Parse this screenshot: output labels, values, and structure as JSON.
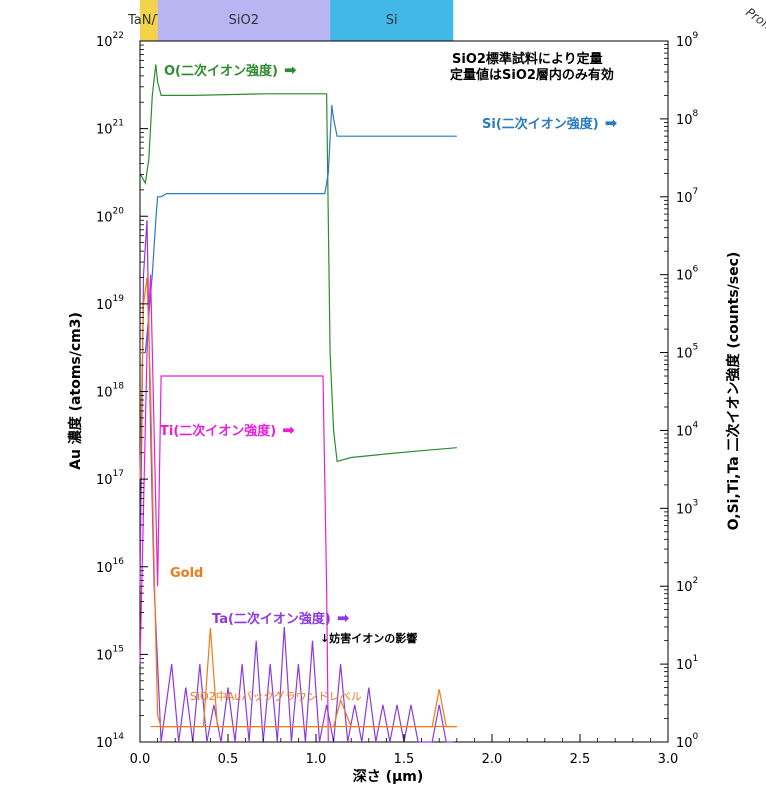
{
  "chart_data": {
    "type": "line",
    "xlabel": "深さ (μm)",
    "ylabel_left": "Au 濃度 (atoms/cm3)",
    "ylabel_right": "O,Si,Ti,Ta 二次イオン強度 (counts/sec)",
    "corner_text": "Profile",
    "xlim": [
      0,
      3.0
    ],
    "x_ticks": [
      "0.0",
      "0.5",
      "1.0",
      "1.5",
      "2.0",
      "2.5",
      "3.0"
    ],
    "x_tick_values": [
      0,
      0.5,
      1.0,
      1.5,
      2.0,
      2.5,
      3.0
    ],
    "ylim_left": [
      100000000000000.0,
      1e+22
    ],
    "ylim_right": [
      1,
      1000000000.0
    ],
    "y_left_scale": "log",
    "y_right_scale": "log",
    "y_left_ticks": [
      {
        "base": "10",
        "exp": "14"
      },
      {
        "base": "10",
        "exp": "15"
      },
      {
        "base": "10",
        "exp": "16"
      },
      {
        "base": "10",
        "exp": "17"
      },
      {
        "base": "10",
        "exp": "18"
      },
      {
        "base": "10",
        "exp": "19"
      },
      {
        "base": "10",
        "exp": "20"
      },
      {
        "base": "10",
        "exp": "21"
      },
      {
        "base": "10",
        "exp": "22"
      }
    ],
    "y_right_ticks": [
      {
        "base": "10",
        "exp": "0"
      },
      {
        "base": "10",
        "exp": "1"
      },
      {
        "base": "10",
        "exp": "2"
      },
      {
        "base": "10",
        "exp": "3"
      },
      {
        "base": "10",
        "exp": "4"
      },
      {
        "base": "10",
        "exp": "5"
      },
      {
        "base": "10",
        "exp": "6"
      },
      {
        "base": "10",
        "exp": "7"
      },
      {
        "base": "10",
        "exp": "8"
      },
      {
        "base": "10",
        "exp": "9"
      }
    ],
    "layers": [
      {
        "label": "TaN/Ta",
        "x0": 0.0,
        "x1": 0.1,
        "color": "#f2d34a"
      },
      {
        "label": "SiO2",
        "x0": 0.1,
        "x1": 1.08,
        "color": "#b9b4f2"
      },
      {
        "label": "Si",
        "x0": 1.08,
        "x1": 1.78,
        "color": "#41b8e8"
      }
    ],
    "notes": [
      "SiO2標準試料により定量",
      "定量値はSiO2層内のみ有効"
    ],
    "annotations": {
      "interference": "↓妨害イオンの影響",
      "background": "SiO2中Auバックグラウンドレベル"
    },
    "series": [
      {
        "name": "O(二次イオン強度)",
        "axis": "right",
        "color": "#2e8b2e",
        "x": [
          0.0,
          0.03,
          0.05,
          0.07,
          0.09,
          0.1,
          0.12,
          0.15,
          0.3,
          0.5,
          0.7,
          0.9,
          1.0,
          1.06,
          1.08,
          1.1,
          1.12,
          1.2,
          1.4,
          1.6,
          1.8
        ],
        "y": [
          20000000,
          15000000,
          30000000,
          200000000,
          500000000,
          300000000,
          200000000,
          200000000,
          200000000,
          205000000,
          210000000,
          210000000,
          210000000,
          210000000,
          100000,
          10000,
          4000,
          4500,
          5000,
          5500,
          6000
        ]
      },
      {
        "name": "Si(二次イオン強度)",
        "axis": "right",
        "color": "#2a7bbf",
        "x": [
          0.0,
          0.03,
          0.05,
          0.07,
          0.09,
          0.1,
          0.12,
          0.15,
          0.3,
          0.5,
          0.7,
          0.9,
          1.0,
          1.05,
          1.07,
          1.09,
          1.1,
          1.12,
          1.2,
          1.4,
          1.6,
          1.8
        ],
        "y": [
          100000,
          100000,
          300000,
          1000000,
          5000000,
          10000000,
          10000000,
          11000000,
          11000000,
          11000000,
          11000000,
          11000000,
          11000000,
          11000000,
          20000000,
          150000000,
          100000000,
          60000000,
          60000000,
          60000000,
          60000000,
          60000000
        ]
      },
      {
        "name": "Ti(二次イオン強度)",
        "axis": "right",
        "color": "#e81fd8",
        "x": [
          0.0,
          0.02,
          0.04,
          0.06,
          0.08,
          0.1,
          0.12,
          0.3,
          0.5,
          0.7,
          0.9,
          1.0,
          1.04,
          1.06,
          1.07
        ],
        "y": [
          10,
          1000,
          100000,
          1000000,
          10000,
          100,
          50000,
          50000,
          50000,
          50000,
          50000,
          50000,
          50000,
          100,
          1
        ]
      },
      {
        "name": "Ta(二次イオン強度)",
        "axis": "right",
        "color": "#8b3ae0",
        "x": [
          0.0,
          0.02,
          0.04,
          0.06,
          0.08,
          0.1,
          0.12,
          0.18,
          0.22,
          0.26,
          0.3,
          0.34,
          0.38,
          0.42,
          0.46,
          0.5,
          0.54,
          0.58,
          0.62,
          0.66,
          0.7,
          0.74,
          0.78,
          0.82,
          0.86,
          0.9,
          0.94,
          0.98,
          1.02,
          1.06,
          1.1,
          1.14,
          1.18,
          1.22,
          1.26,
          1.3,
          1.34,
          1.38,
          1.42,
          1.46,
          1.5,
          1.54,
          1.58,
          1.62,
          1.66,
          1.7,
          1.74,
          1.78
        ],
        "y": [
          100,
          1000000,
          5000000,
          10000,
          100,
          10,
          1,
          10,
          1,
          5,
          1,
          10,
          1,
          3,
          1,
          5,
          1,
          10,
          1,
          20,
          1,
          10,
          1,
          30,
          1,
          10,
          1,
          20,
          1,
          3,
          1,
          10,
          1,
          3,
          1,
          5,
          1,
          3,
          1,
          3,
          1,
          3,
          1,
          1,
          1,
          3,
          1,
          1
        ]
      },
      {
        "name": "Gold",
        "axis": "left",
        "color": "#f07a1a",
        "x": [
          0.0,
          0.02,
          0.04,
          0.06,
          0.08,
          0.1,
          0.12,
          0.2,
          0.3,
          0.36,
          0.4,
          0.44,
          0.5,
          0.6,
          0.7,
          0.8,
          0.9,
          1.0,
          1.1,
          1.14,
          1.2,
          1.3,
          1.4,
          1.5,
          1.6,
          1.66,
          1.7,
          1.74,
          1.8
        ],
        "y": [
          100000000000000000,
          10000000000000000000,
          20000000000000000000,
          1000000000000000000,
          10000000000000000,
          200000000000000,
          150000000000000,
          150000000000000,
          150000000000000,
          150000000000000,
          2000000000000000,
          150000000000000,
          150000000000000,
          150000000000000,
          150000000000000,
          150000000000000,
          150000000000000,
          150000000000000,
          150000000000000,
          300000000000000,
          150000000000000,
          150000000000000,
          150000000000000,
          150000000000000,
          150000000000000,
          150000000000000,
          400000000000000,
          150000000000000,
          150000000000000
        ]
      }
    ],
    "series_labels": [
      {
        "text": "O(二次イオン強度)",
        "arrow": "➡",
        "color": "#2e8b2e"
      },
      {
        "text": "Si(二次イオン強度)",
        "arrow": "➡",
        "color": "#2a7bbf"
      },
      {
        "text": "Ti(二次イオン強度)",
        "arrow": "➡",
        "color": "#e81fd8"
      },
      {
        "text": "Ta(二次イオン強度)",
        "arrow": "➡",
        "color": "#8b3ae0"
      },
      {
        "text": "Gold",
        "arrow": "",
        "color": "#f07a1a"
      }
    ],
    "background_level": {
      "y": 150000000000000,
      "x0": 0.06,
      "x1": 1.8,
      "color": "#f07a1a"
    }
  }
}
